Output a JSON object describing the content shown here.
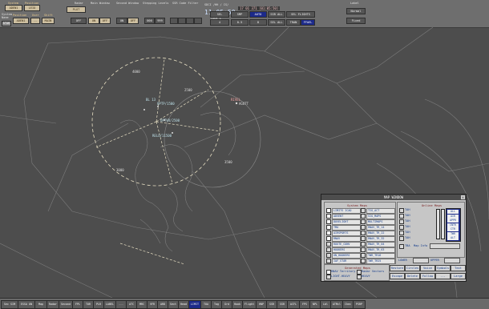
{
  "toolbar": {
    "system": {
      "label": "System",
      "value": "ADEN1"
    },
    "position": {
      "label": "Position",
      "value": "LEIO"
    },
    "system_name": {
      "label": "System Name",
      "value": "ATAK"
    },
    "position2": {
      "label": "Position",
      "value": "ADEN1"
    },
    "user": {
      "label": "User",
      "value": "--"
    },
    "shift": {
      "label": "Shift",
      "value": "MAIN"
    },
    "radar": {
      "label": "Radar",
      "value": "PLOT",
      "buttons": [
        "OFF"
      ]
    },
    "main_window": {
      "label": "Main Window",
      "buttons": [
        "ON",
        "OFF"
      ]
    },
    "second_window": {
      "label": "Second Window",
      "buttons": [
        "ON",
        "OFF"
      ]
    },
    "stepping_levels": {
      "label": "Stepping Levels",
      "buttons": [
        "000",
        "999"
      ]
    },
    "ssr_code_filter": {
      "label": "SSR Code Filter",
      "fields": [
        "",
        "",
        "",
        ""
      ]
    },
    "sdci_title": "SDCI /HH / CS/",
    "clock": "11:05:50",
    "clock_sub": "CODE L",
    "date": "17 01 371 [01:05:50]",
    "buttons_row1": [
      "SEL",
      "SMP",
      "AUTO",
      "SSR ALL",
      "SEL FLIGHTS"
    ],
    "buttons_row2": [
      "4",
      "0.5",
      "8",
      "SEL ALL",
      "TRAN",
      "FFAEL"
    ],
    "label_group": {
      "label": "Label",
      "buttons": [
        "Normal",
        "Fixed"
      ]
    }
  },
  "map": {
    "labels": [
      {
        "text": "4000"
      },
      {
        "text": "2500"
      },
      {
        "text": "3000"
      },
      {
        "text": "3500"
      },
      {
        "text": "BL 13"
      },
      {
        "text": "OPTP/1500"
      },
      {
        "text": "OPTVR/2500"
      },
      {
        "text": "RELO/11500"
      },
      {
        "text": "RIVEL"
      },
      {
        "text": "AGOTT"
      }
    ]
  },
  "dialog": {
    "title": "MAP WINDOW",
    "close": "x",
    "system_maps_header": "System Maps",
    "online_maps_header": "Online Maps",
    "system_maps_col1": [
      {
        "label": "LIMITS ICAO",
        "on": true
      },
      {
        "label": "ADVENT",
        "on": true
      },
      {
        "label": "DOVELIGHT",
        "on": true
      },
      {
        "label": "TMA",
        "on": true
      },
      {
        "label": "AIRSPORTS",
        "on": true
      },
      {
        "label": "RNAV",
        "on": true
      },
      {
        "label": "ROUTE_CONV",
        "on": false
      },
      {
        "label": "HOOKERS",
        "on": false
      },
      {
        "label": "UN_HOOKERS",
        "on": false
      },
      {
        "label": "IAF_STAR",
        "on": false
      }
    ],
    "system_maps_col2": [
      {
        "label": "TIG_ACT",
        "on": false
      },
      {
        "label": "SIG_MAPS",
        "on": false
      },
      {
        "label": "MULTIMAPS",
        "on": false
      },
      {
        "label": "RNAV_TR_14",
        "on": false
      },
      {
        "label": "RNAV_TR_22",
        "on": false
      },
      {
        "label": "RNAV_TR_32",
        "on": false
      },
      {
        "label": "RNAV_TR_04",
        "on": false
      },
      {
        "label": "RNAV_TR_63",
        "on": false
      },
      {
        "label": "TWR_TR16",
        "on": false
      },
      {
        "label": "TWR_TR25",
        "on": false
      }
    ],
    "online_maps": [
      "TAH",
      "TAH",
      "TAH",
      "TAH",
      "TAH",
      "TAH"
    ],
    "online_list": [
      "ALL",
      "AIR",
      "APPR",
      "CNTR",
      "CTR",
      "TWR",
      "ALT"
    ],
    "tba_label": "TBA",
    "map_info_label": "Map Info",
    "lower_label": "LOWER",
    "upper_label": "UPPER",
    "buttons_row1": [
      "Restore",
      "Circles",
      "Voice",
      "Symbols",
      "Text"
    ],
    "buttons_row2": [
      "Escape",
      "Delete",
      "Follow",
      "...",
      "Large"
    ],
    "generated_maps_header": "Generated Maps",
    "generated_maps": [
      {
        "label": "RNAV Territory",
        "on": true
      },
      {
        "label": "Radar Vectors",
        "on": false
      },
      {
        "label": "LIGHT-HEAVY",
        "on": false
      },
      {
        "label": "HEAVY",
        "on": false
      }
    ]
  },
  "bottom_bar": {
    "buttons": [
      "Sec SIM",
      "ESSA ON",
      "Map",
      "Radar",
      "Second",
      "FPL",
      "TOR",
      "PLR",
      "LABEL",
      "---",
      "ATC",
      "MRC",
      "VFR",
      "ARD",
      "Sect",
      "Head",
      "LIMIT",
      "TOA",
      "Tag",
      "Grd",
      "Hook",
      "Flight",
      "HNP",
      "SSR",
      "SSR",
      "ACFL",
      "FPS",
      "NPL",
      "Lbl",
      "ATMcl",
      "Chec",
      "PSRP"
    ],
    "active_index": 16
  }
}
